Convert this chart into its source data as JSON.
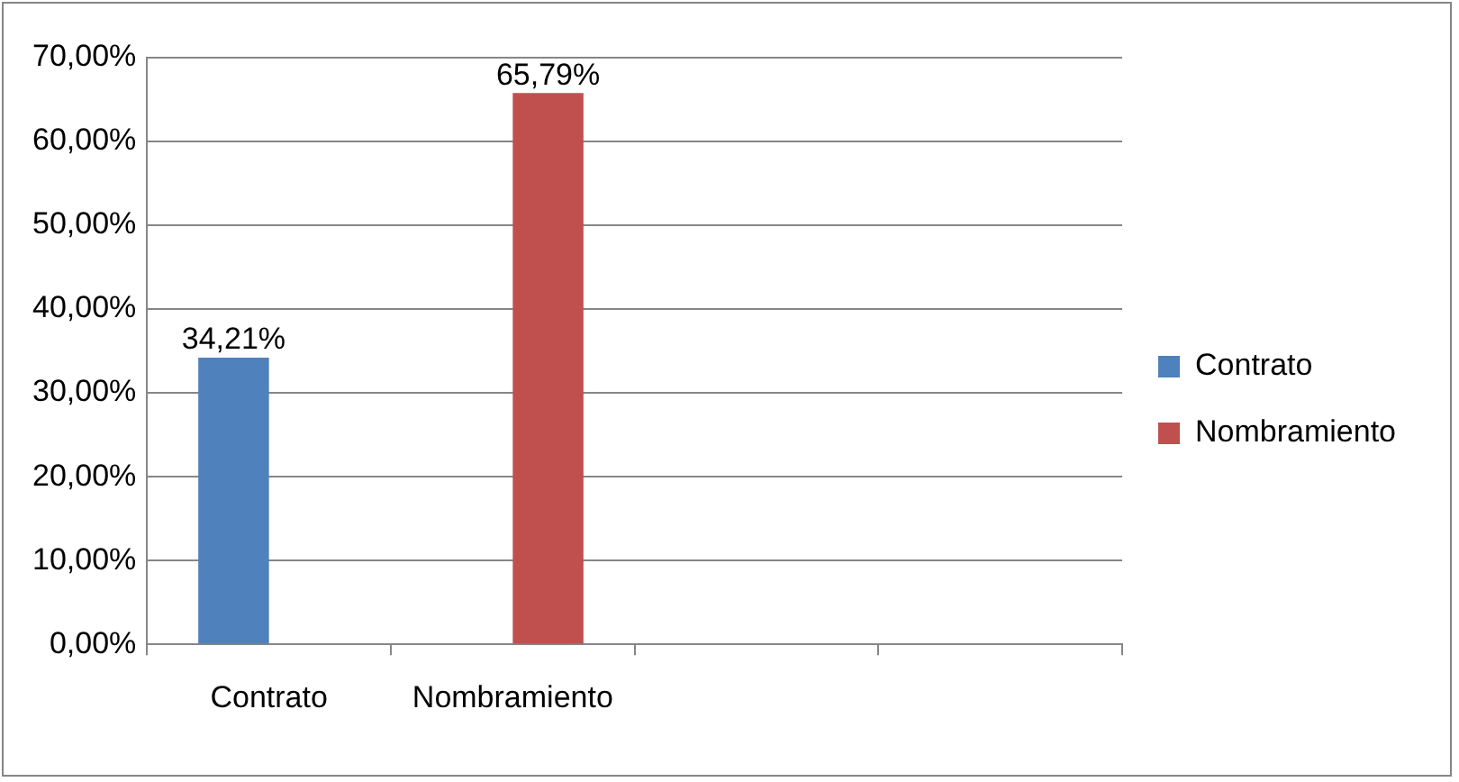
{
  "chart_data": {
    "type": "bar",
    "categories": [
      "Contrato",
      "Nombramiento",
      null,
      null
    ],
    "series": [
      {
        "name": "Contrato",
        "color": "#4f81bd",
        "values": [
          34.21,
          null,
          null,
          null
        ],
        "value_labels": [
          "34,21%",
          null,
          null,
          null
        ]
      },
      {
        "name": "Nombramiento",
        "color": "#c0504d",
        "values": [
          null,
          65.79,
          null,
          null
        ],
        "value_labels": [
          null,
          "65,79%",
          null,
          null
        ]
      }
    ],
    "ylim": [
      0,
      70
    ],
    "yticks": [
      {
        "value": 0,
        "label": "0,00%"
      },
      {
        "value": 10,
        "label": "10,00%"
      },
      {
        "value": 20,
        "label": "20,00%"
      },
      {
        "value": 30,
        "label": "30,00%"
      },
      {
        "value": 40,
        "label": "40,00%"
      },
      {
        "value": 50,
        "label": "50,00%"
      },
      {
        "value": 60,
        "label": "60,00%"
      },
      {
        "value": 70,
        "label": "70,00%"
      }
    ],
    "grid": "y",
    "legend": "right"
  }
}
